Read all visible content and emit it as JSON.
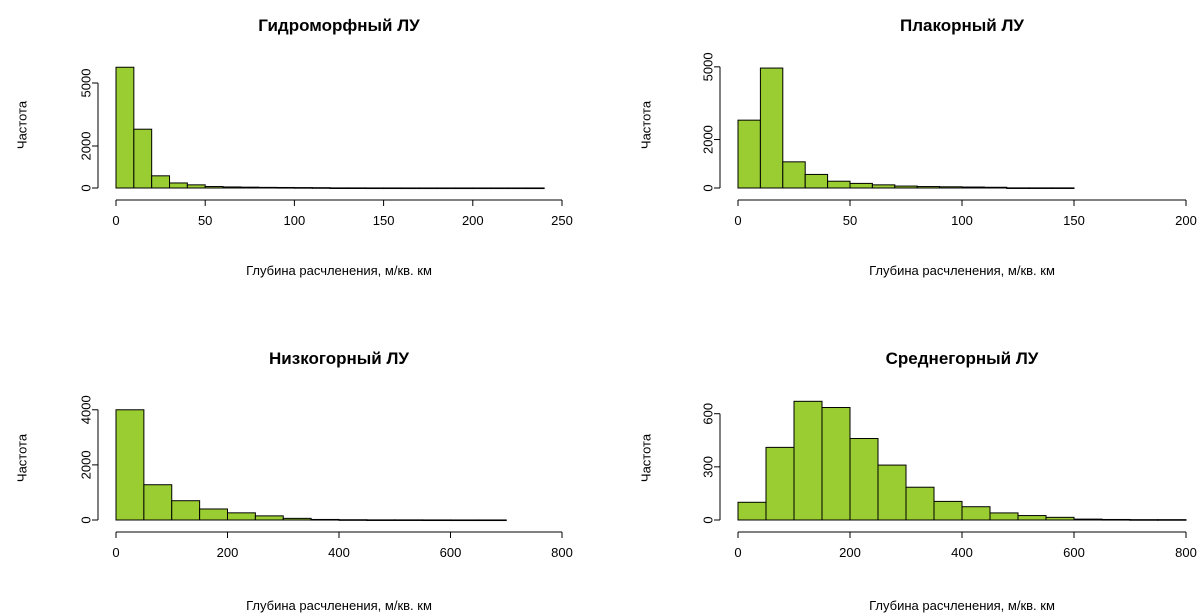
{
  "chart_data": [
    {
      "type": "bar",
      "title": "Гидроморфный ЛУ",
      "xlabel": "Глубина расчленения, м/кв. км",
      "ylabel": "Частота",
      "bar_color": "#9acd32",
      "xlim": [
        0,
        250
      ],
      "ylim": [
        0,
        6000
      ],
      "xticks": [
        "0",
        "50",
        "100",
        "150",
        "200",
        "250"
      ],
      "yticks": [
        "0",
        "2000",
        "5000"
      ],
      "ytick_values": [
        0,
        2000,
        5000
      ],
      "bin_edges": [
        0,
        10,
        20,
        30,
        40,
        50,
        60,
        70,
        80,
        90,
        100,
        110,
        120,
        130,
        140,
        150,
        160,
        170,
        180,
        190,
        200,
        210,
        220,
        230,
        240
      ],
      "values": [
        5750,
        2800,
        580,
        240,
        150,
        70,
        50,
        40,
        30,
        25,
        20,
        15,
        5,
        5,
        3,
        3,
        2,
        2,
        2,
        2,
        2,
        2,
        2,
        2
      ]
    },
    {
      "type": "bar",
      "title": "Плакорный ЛУ",
      "xlabel": "Глубина расчленения, м/кв. км",
      "ylabel": "Частота",
      "bar_color": "#9acd32",
      "xlim": [
        0,
        200
      ],
      "ylim": [
        0,
        5200
      ],
      "xticks": [
        "0",
        "50",
        "100",
        "150",
        "200"
      ],
      "yticks": [
        "0",
        "2000",
        "5000"
      ],
      "ytick_values": [
        0,
        2000,
        5000
      ],
      "bin_edges": [
        0,
        10,
        20,
        30,
        40,
        50,
        60,
        70,
        80,
        90,
        100,
        110,
        120,
        130,
        140,
        150
      ],
      "values": [
        2800,
        4950,
        1080,
        560,
        280,
        190,
        130,
        80,
        60,
        50,
        40,
        30,
        5,
        5,
        5
      ]
    },
    {
      "type": "bar",
      "title": "Низкогорный ЛУ",
      "xlabel": "Глубина расчленения, м/кв. км",
      "ylabel": "Частота",
      "bar_color": "#9acd32",
      "xlim": [
        0,
        800
      ],
      "ylim": [
        0,
        4500
      ],
      "xticks": [
        "0",
        "200",
        "400",
        "600",
        "800"
      ],
      "yticks": [
        "0",
        "2000",
        "4000"
      ],
      "ytick_values": [
        0,
        2000,
        4000
      ],
      "bin_edges": [
        0,
        50,
        100,
        150,
        200,
        250,
        300,
        350,
        400,
        450,
        500,
        550,
        600,
        650,
        700
      ],
      "values": [
        4000,
        1280,
        700,
        400,
        260,
        150,
        60,
        20,
        10,
        5,
        5,
        3,
        2,
        2
      ]
    },
    {
      "type": "bar",
      "title": "Среднегорный ЛУ",
      "xlabel": "Глубина расчленения, м/кв. км",
      "ylabel": "Частота",
      "bar_color": "#9acd32",
      "xlim": [
        0,
        800
      ],
      "ylim": [
        0,
        700
      ],
      "xticks": [
        "0",
        "200",
        "400",
        "600",
        "800"
      ],
      "yticks": [
        "0",
        "300",
        "600"
      ],
      "ytick_values": [
        0,
        300,
        600
      ],
      "bin_edges": [
        0,
        50,
        100,
        150,
        200,
        250,
        300,
        350,
        400,
        450,
        500,
        550,
        600,
        650,
        700,
        750,
        800
      ],
      "values": [
        100,
        410,
        670,
        635,
        460,
        310,
        185,
        105,
        75,
        40,
        25,
        15,
        5,
        3,
        2,
        2
      ]
    }
  ]
}
